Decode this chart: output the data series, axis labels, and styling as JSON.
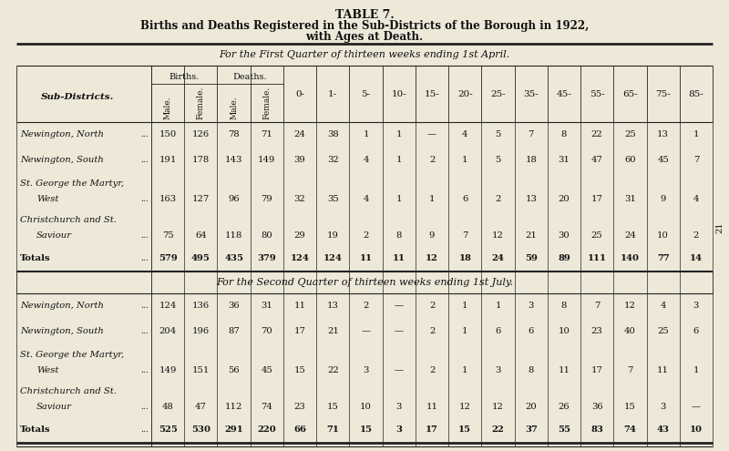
{
  "title1": "TABLE 7.",
  "title2": "Births and Deaths Registered in the Sub-Districts of the Borough in 1922,",
  "title3": "with Ages at Death.",
  "section1_header": "For the First Quarter of thirteen weeks ending 1st April.",
  "section2_header": "For the Second Quarter of thirteen weeks ending 1st July.",
  "col_headers_sub": [
    "Male.",
    "Female.",
    "Male.",
    "Female.",
    "0-",
    "1-",
    "5-",
    "10-",
    "15-",
    "20-",
    "25-",
    "35-",
    "45-",
    "55-",
    "65-",
    "75-",
    "85-"
  ],
  "row_label_header": "Sub-Districts.",
  "q1_rows": [
    {
      "labels": [
        "Newington, North"
      ],
      "data": [
        "150",
        "126",
        "78",
        "71",
        "24",
        "38",
        "1",
        "1",
        "—",
        "4",
        "5",
        "7",
        "8",
        "22",
        "25",
        "13",
        "1"
      ],
      "is_total": false,
      "two_line": false
    },
    {
      "labels": [
        "Newington, South"
      ],
      "data": [
        "191",
        "178",
        "143",
        "149",
        "39",
        "32",
        "4",
        "1",
        "2",
        "1",
        "5",
        "18",
        "31",
        "47",
        "60",
        "45",
        "7"
      ],
      "is_total": false,
      "two_line": false
    },
    {
      "labels": [
        "St. George the Martyr,",
        "West"
      ],
      "data": [
        "163",
        "127",
        "96",
        "79",
        "32",
        "35",
        "4",
        "1",
        "1",
        "6",
        "2",
        "13",
        "20",
        "17",
        "31",
        "9",
        "4"
      ],
      "is_total": false,
      "two_line": true
    },
    {
      "labels": [
        "Christchurch and St.",
        "Saviour"
      ],
      "data": [
        "75",
        "64",
        "118",
        "80",
        "29",
        "19",
        "2",
        "8",
        "9",
        "7",
        "12",
        "21",
        "30",
        "25",
        "24",
        "10",
        "2"
      ],
      "is_total": false,
      "two_line": true
    },
    {
      "labels": [
        "Totals"
      ],
      "data": [
        "579",
        "495",
        "435",
        "379",
        "124",
        "124",
        "11",
        "11",
        "12",
        "18",
        "24",
        "59",
        "89",
        "111",
        "140",
        "77",
        "14"
      ],
      "is_total": true,
      "two_line": false
    }
  ],
  "q2_rows": [
    {
      "labels": [
        "Newington, North"
      ],
      "data": [
        "124",
        "136",
        "36",
        "31",
        "11",
        "13",
        "2",
        "—",
        "2",
        "1",
        "1",
        "3",
        "8",
        "7",
        "12",
        "4",
        "3"
      ],
      "is_total": false,
      "two_line": false
    },
    {
      "labels": [
        "Newington, South"
      ],
      "data": [
        "204",
        "196",
        "87",
        "70",
        "17",
        "21",
        "—",
        "—",
        "2",
        "1",
        "6",
        "6",
        "10",
        "23",
        "40",
        "25",
        "6"
      ],
      "is_total": false,
      "two_line": false
    },
    {
      "labels": [
        "St. George the Martyr,",
        "West"
      ],
      "data": [
        "149",
        "151",
        "56",
        "45",
        "15",
        "22",
        "3",
        "—",
        "2",
        "1",
        "3",
        "8",
        "11",
        "17",
        "7",
        "11",
        "1"
      ],
      "is_total": false,
      "two_line": true
    },
    {
      "labels": [
        "Christchurch and St.",
        "Saviour"
      ],
      "data": [
        "48",
        "47",
        "112",
        "74",
        "23",
        "15",
        "10",
        "3",
        "11",
        "12",
        "12",
        "20",
        "26",
        "36",
        "15",
        "3",
        "—"
      ],
      "is_total": false,
      "two_line": true
    },
    {
      "labels": [
        "Totals"
      ],
      "data": [
        "525",
        "530",
        "291",
        "220",
        "66",
        "71",
        "15",
        "3",
        "17",
        "15",
        "22",
        "37",
        "55",
        "83",
        "74",
        "43",
        "10"
      ],
      "is_total": true,
      "two_line": false
    }
  ],
  "bg_color": "#ede8d8",
  "text_color": "#111111",
  "line_color": "#222222",
  "page_num": "21"
}
